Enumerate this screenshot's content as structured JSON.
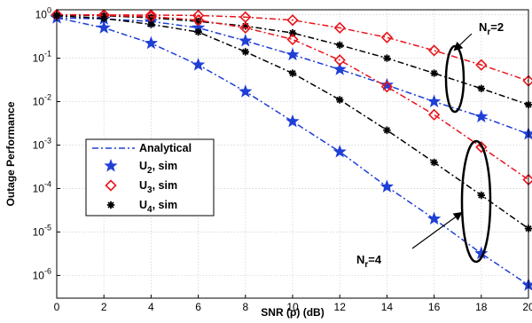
{
  "chart_data": {
    "type": "line",
    "title": "",
    "xlabel": "SNR (ρ) (dB)",
    "ylabel": "Outage Performance",
    "xlim": [
      0,
      20
    ],
    "ylim": [
      3e-07,
      1.3
    ],
    "yscale": "log",
    "grid": true,
    "legend_position": "left-center",
    "x_ticks": [
      0,
      2,
      4,
      6,
      8,
      10,
      12,
      14,
      16,
      18,
      20
    ],
    "y_ticks": [
      {
        "value": 1e-06,
        "base": "10",
        "exp": "-6"
      },
      {
        "value": 1e-05,
        "base": "10",
        "exp": "-5"
      },
      {
        "value": 0.0001,
        "base": "10",
        "exp": "-4"
      },
      {
        "value": 0.001,
        "base": "10",
        "exp": "-3"
      },
      {
        "value": 0.01,
        "base": "10",
        "exp": "-2"
      },
      {
        "value": 0.1,
        "base": "10",
        "exp": "-1"
      },
      {
        "value": 1,
        "base": "10",
        "exp": "0"
      }
    ],
    "x": [
      0,
      2,
      4,
      6,
      8,
      10,
      12,
      14,
      16,
      18,
      20
    ],
    "series": [
      {
        "id": "u2-nr2",
        "legend": "u2",
        "color": "#1f3fd6",
        "marker": "star",
        "values": [
          0.85,
          0.8,
          0.7,
          0.5,
          0.25,
          0.12,
          0.055,
          0.024,
          0.01,
          0.0045,
          0.0018
        ]
      },
      {
        "id": "u3-nr2",
        "legend": "u3",
        "color": "#e8141b",
        "marker": "diamond",
        "values": [
          1.0,
          0.99,
          0.98,
          0.96,
          0.88,
          0.75,
          0.5,
          0.3,
          0.15,
          0.07,
          0.03
        ]
      },
      {
        "id": "u4-nr2",
        "legend": "u4",
        "color": "#000000",
        "marker": "asterisk",
        "values": [
          0.98,
          0.95,
          0.85,
          0.7,
          0.55,
          0.38,
          0.2,
          0.1,
          0.045,
          0.02,
          0.0085
        ]
      },
      {
        "id": "u2-nr4",
        "legend": "u2",
        "color": "#1f3fd6",
        "marker": "star",
        "values": [
          0.85,
          0.5,
          0.22,
          0.07,
          0.017,
          0.0035,
          0.0007,
          0.00011,
          2e-05,
          3.2e-06,
          6e-07
        ]
      },
      {
        "id": "u3-nr4",
        "legend": "u3",
        "color": "#e8141b",
        "marker": "diamond",
        "values": [
          1.0,
          0.97,
          0.9,
          0.75,
          0.5,
          0.27,
          0.09,
          0.022,
          0.005,
          0.0009,
          0.00016
        ]
      },
      {
        "id": "u4-nr4",
        "legend": "u4",
        "color": "#000000",
        "marker": "asterisk",
        "values": [
          0.95,
          0.82,
          0.6,
          0.4,
          0.14,
          0.045,
          0.011,
          0.0022,
          0.0004,
          7e-05,
          1.2e-05
        ]
      }
    ],
    "legend": [
      {
        "key": "analytical",
        "label": "Analytical",
        "color": "#1f3fd6",
        "marker": "line"
      },
      {
        "key": "u2",
        "base": "U",
        "sub": "2",
        "suffix": ", sim",
        "color": "#1f3fd6",
        "marker": "star"
      },
      {
        "key": "u3",
        "base": "U",
        "sub": "3",
        "suffix": ", sim",
        "color": "#e8141b",
        "marker": "diamond"
      },
      {
        "key": "u4",
        "base": "U",
        "sub": "4",
        "suffix": ", sim",
        "color": "#000000",
        "marker": "asterisk"
      }
    ],
    "annotations": [
      {
        "key": "nr2",
        "base": "N",
        "sub": "r",
        "suffix": "=2"
      },
      {
        "key": "nr4",
        "base": "N",
        "sub": "r",
        "suffix": "=4"
      }
    ]
  }
}
